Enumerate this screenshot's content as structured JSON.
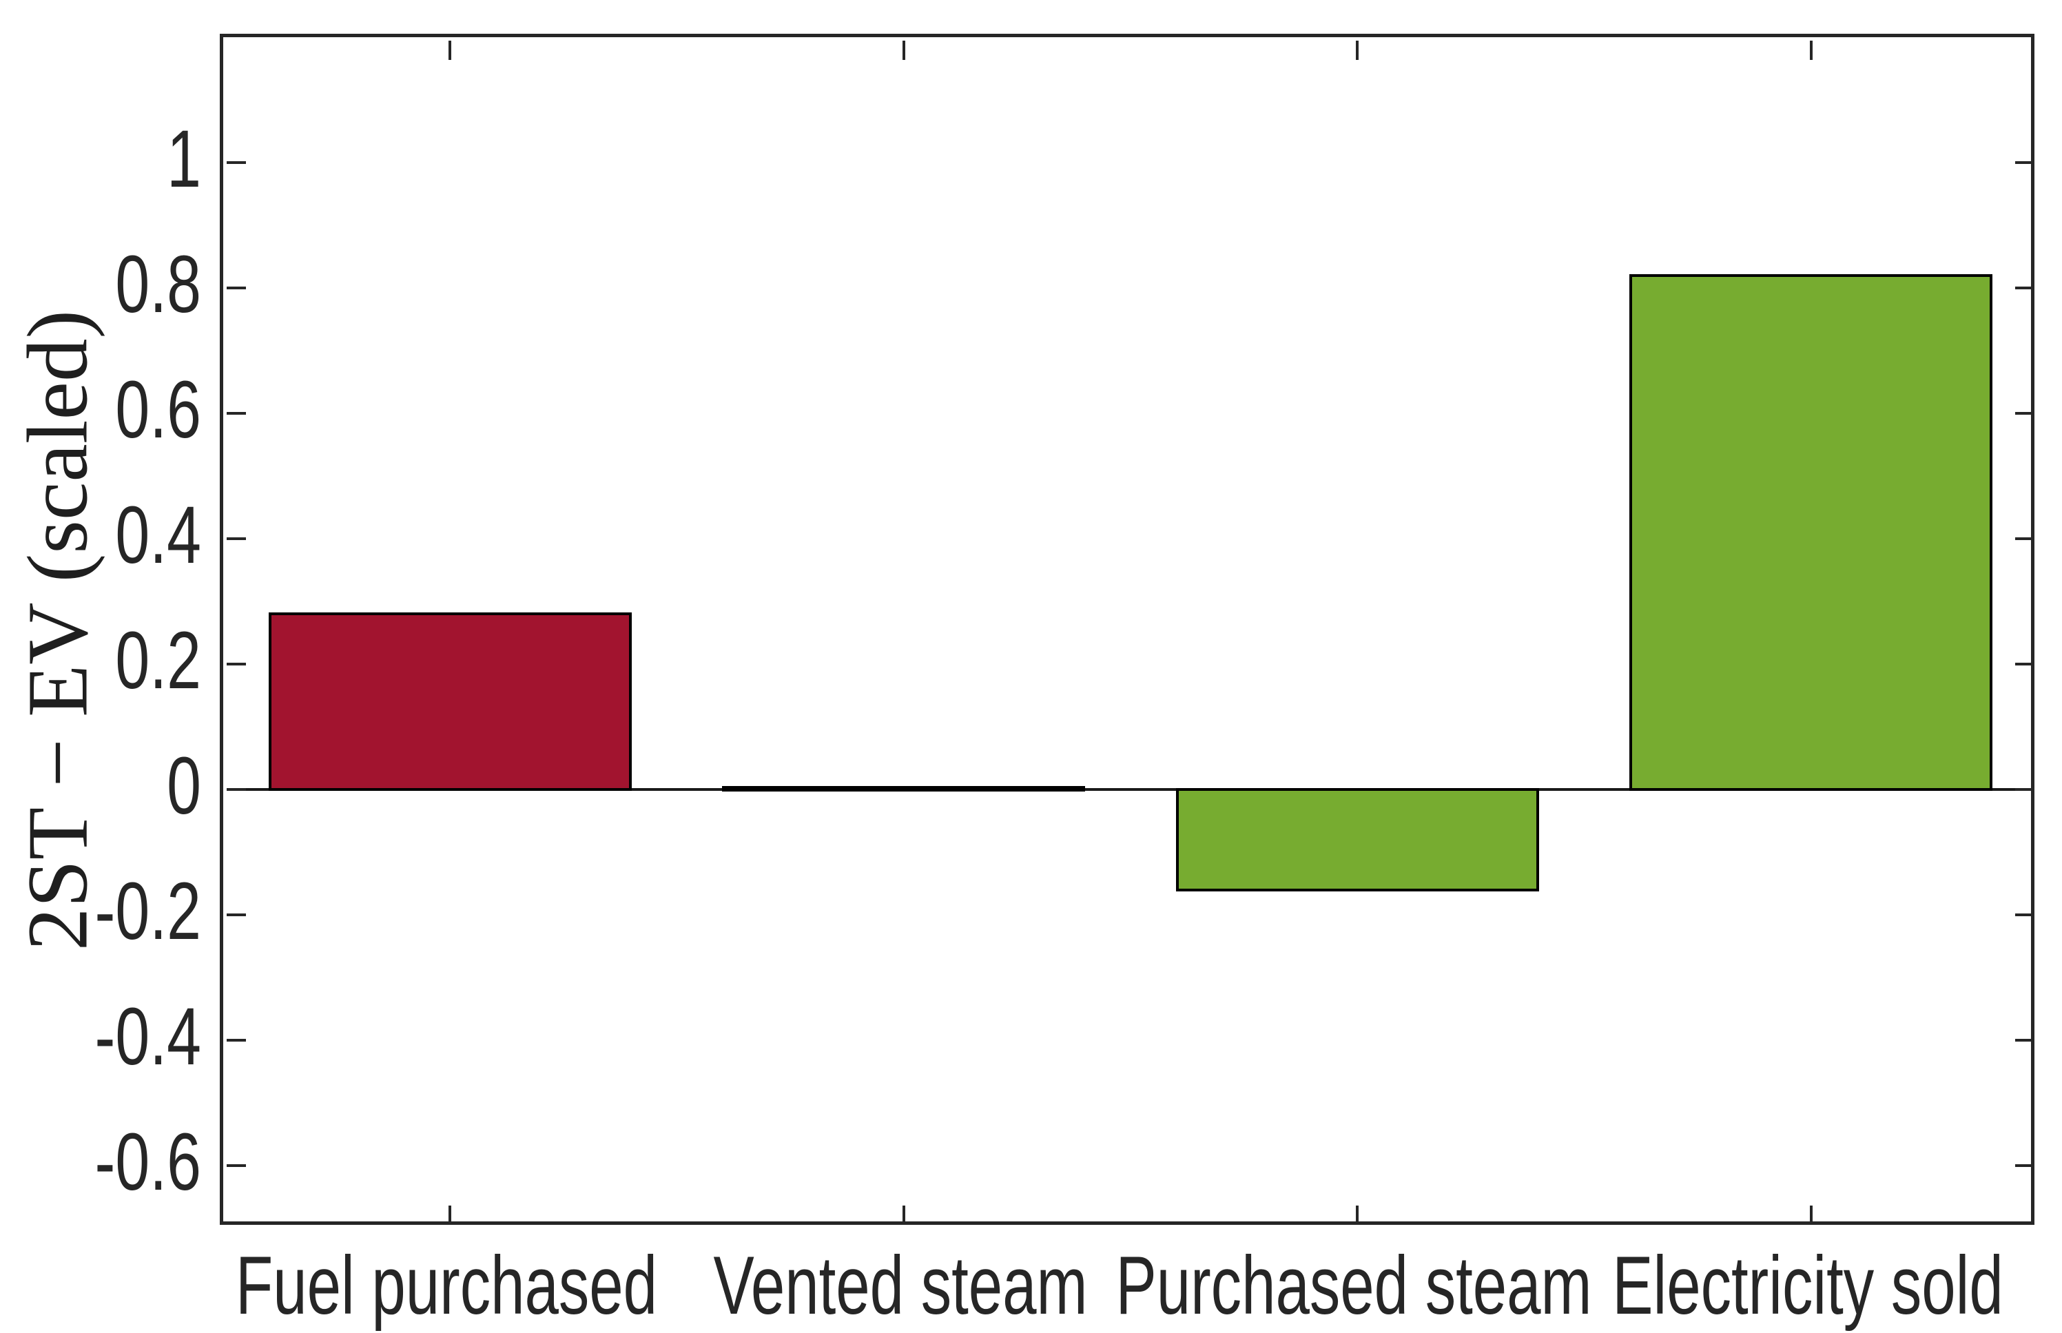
{
  "chart_data": {
    "type": "bar",
    "title": "",
    "xlabel": "",
    "ylabel": "2ST − EV (scaled)",
    "categories": [
      "Fuel purchased",
      "Vented steam",
      "Purchased steam",
      "Electricity sold"
    ],
    "values": [
      0.28,
      0.003,
      -0.16,
      0.82
    ],
    "bar_colors": [
      "#A2142F",
      "#77AC30",
      "#77AC30",
      "#77AC30"
    ],
    "bar_edge_color": "#000000",
    "bar_width_fraction": 0.8,
    "xlim": [
      0.5,
      4.5
    ],
    "ylim": [
      -0.7,
      1.2
    ],
    "yticks": {
      "values": [
        1,
        0.8,
        0.6,
        0.4,
        0.2,
        0,
        -0.2,
        -0.4,
        -0.6
      ],
      "labels": [
        "1",
        "0.8",
        "0.6",
        "0.4",
        "0.2",
        "0",
        "-0.2",
        "-0.4",
        "-0.6"
      ]
    },
    "axis_color": "#262626",
    "background": "#ffffff",
    "grid": false,
    "legend": null
  }
}
